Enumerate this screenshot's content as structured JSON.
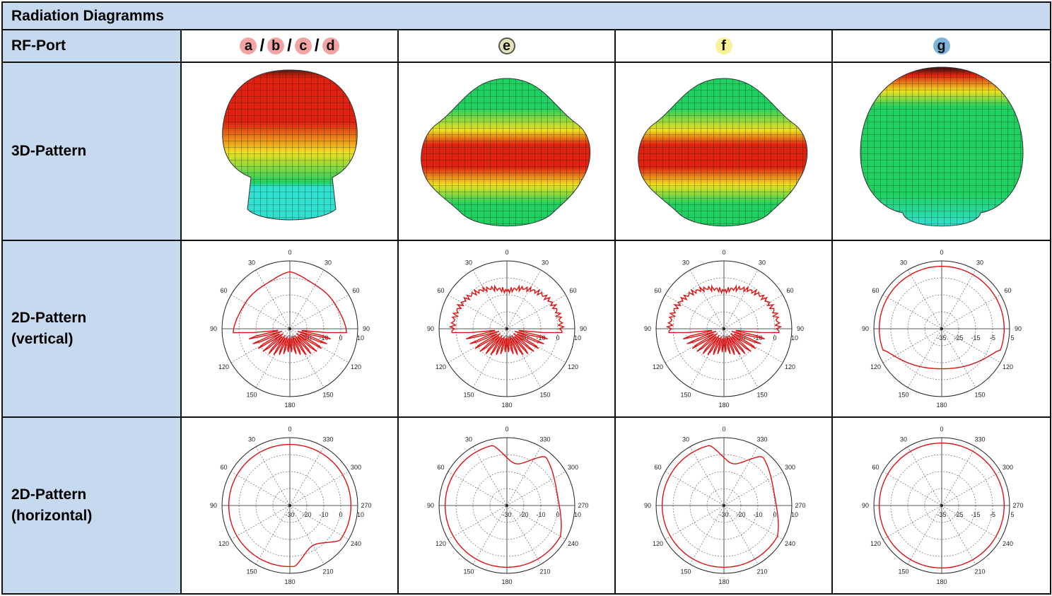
{
  "table": {
    "title": "Radiation Diagramms",
    "rows": {
      "rf_port": "RF-Port",
      "pattern_3d": "3D-Pattern",
      "pattern_2d_vertical": [
        "2D-Pattern",
        "(vertical)"
      ],
      "pattern_2d_horizontal": [
        "2D-Pattern",
        "(horizontal)"
      ]
    },
    "ports": [
      {
        "badges": [
          "a",
          "b",
          "c",
          "d"
        ],
        "separator": "/",
        "color": "#f4a3a3"
      },
      {
        "badges": [
          "e"
        ],
        "color": "#e6e2b8"
      },
      {
        "badges": [
          "f"
        ],
        "color": "#f8f29a"
      },
      {
        "badges": [
          "g"
        ],
        "color": "#7db4dc"
      }
    ]
  },
  "polar_labels": {
    "angle_top": "0",
    "angle_bottom": "180",
    "vertical_angles": {
      "upper_left": "30",
      "upper_right": "30",
      "mid_upper_left": "60",
      "mid_upper_right": "60",
      "left": "90",
      "right": "90",
      "mid_lower_left": "120",
      "mid_lower_right": "120",
      "lower_left": "150",
      "lower_right": "150"
    },
    "horizontal_angles": {
      "upper_left": "30",
      "upper_right": "330",
      "mid_upper_left": "60",
      "mid_upper_right": "300",
      "left": "90",
      "right": "270",
      "mid_lower_left": "120",
      "mid_lower_right": "240",
      "lower_left": "150",
      "lower_right": "210"
    },
    "radial_ticks_a": [
      "-30",
      "-20",
      "-10",
      "0",
      "10"
    ],
    "radial_ticks_g": [
      "-35",
      "-25",
      "-15",
      "-5",
      "5"
    ]
  },
  "colors": {
    "header_bg": "#c6d9ef",
    "pattern_line": "#e01010",
    "surface_high": "#e02010",
    "surface_mid": "#f0e020",
    "surface_low": "#20d060",
    "surface_min": "#30e0d0"
  }
}
